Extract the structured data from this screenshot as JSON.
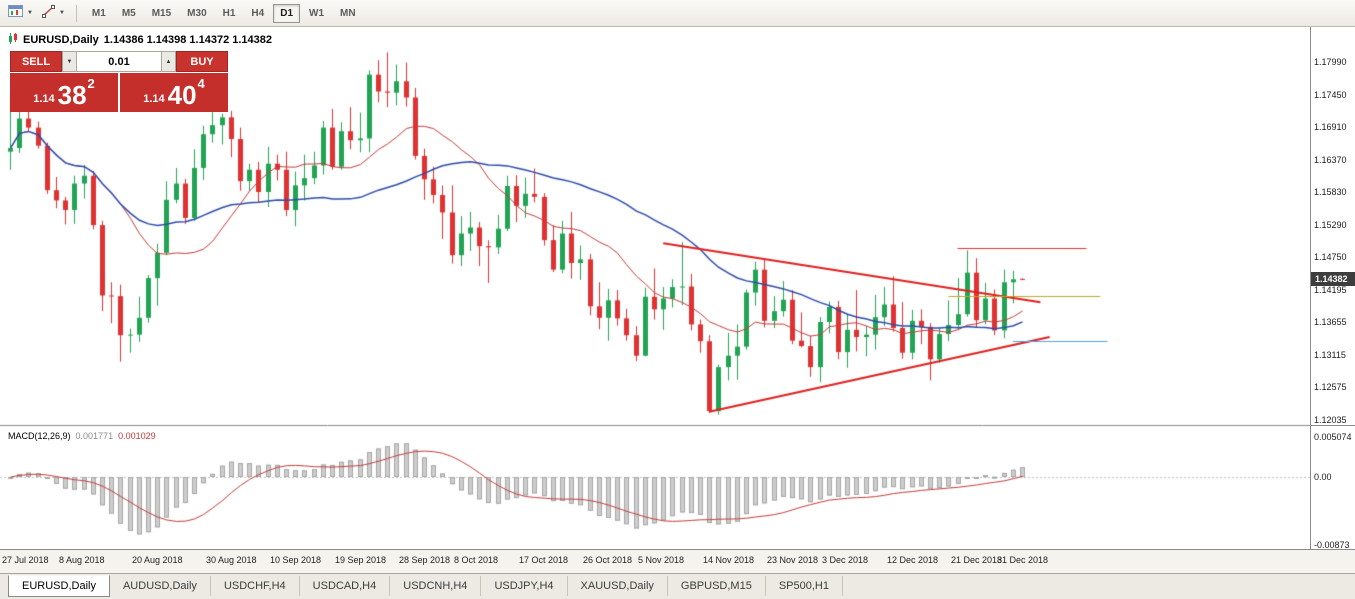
{
  "toolbar": {
    "timeframes": [
      {
        "label": "M1",
        "active": false
      },
      {
        "label": "M5",
        "active": false
      },
      {
        "label": "M15",
        "active": false
      },
      {
        "label": "M30",
        "active": false
      },
      {
        "label": "H1",
        "active": false
      },
      {
        "label": "H4",
        "active": false
      },
      {
        "label": "D1",
        "active": true
      },
      {
        "label": "W1",
        "active": false
      },
      {
        "label": "MN",
        "active": false
      }
    ]
  },
  "header": {
    "symbol": "EURUSD,Daily",
    "ohlc": "1.14386 1.14398 1.14372 1.14382"
  },
  "trade_panel": {
    "sell_label": "SELL",
    "buy_label": "BUY",
    "lot": "0.01",
    "sell_price": {
      "prefix": "1.14",
      "big": "38",
      "sup": "2"
    },
    "buy_price": {
      "prefix": "1.14",
      "big": "40",
      "sup": "4"
    }
  },
  "chart": {
    "current_price": "1.14382",
    "price_ticks": [
      "1.17990",
      "1.17450",
      "1.16910",
      "1.16370",
      "1.15830",
      "1.15290",
      "1.14750",
      "1.14195",
      "1.13655",
      "1.13115",
      "1.12575",
      "1.12035"
    ],
    "date_ticks": [
      {
        "label": "27 Jul 2018",
        "i": 0
      },
      {
        "label": "8 Aug 2018",
        "i": 8
      },
      {
        "label": "20 Aug 2018",
        "i": 16
      },
      {
        "label": "30 Aug 2018",
        "i": 24
      },
      {
        "label": "10 Sep 2018",
        "i": 31
      },
      {
        "label": "19 Sep 2018",
        "i": 38
      },
      {
        "label": "28 Sep 2018",
        "i": 45
      },
      {
        "label": "8 Oct 2018",
        "i": 51
      },
      {
        "label": "17 Oct 2018",
        "i": 58
      },
      {
        "label": "26 Oct 2018",
        "i": 65
      },
      {
        "label": "5 Nov 2018",
        "i": 71
      },
      {
        "label": "14 Nov 2018",
        "i": 78
      },
      {
        "label": "23 Nov 2018",
        "i": 85
      },
      {
        "label": "3 Dec 2018",
        "i": 91
      },
      {
        "label": "12 Dec 2018",
        "i": 98
      },
      {
        "label": "21 Dec 2018",
        "i": 105
      },
      {
        "label": "31 Dec 2018",
        "i": 110
      }
    ]
  },
  "macd_panel": {
    "name": "MACD(12,26,9)",
    "main_value": "0.001771",
    "signal_value": "0.001029",
    "scale_ticks": [
      {
        "label": "0.005074",
        "value": 0.005074
      },
      {
        "label": "0.00",
        "value": 0
      },
      {
        "label": "-0.00873",
        "value": -0.00873
      }
    ]
  },
  "tabs": [
    {
      "label": "EURUSD,Daily",
      "active": true
    },
    {
      "label": "AUDUSD,Daily",
      "active": false
    },
    {
      "label": "USDCHF,H4",
      "active": false
    },
    {
      "label": "USDCAD,H4",
      "active": false
    },
    {
      "label": "USDCNH,H4",
      "active": false
    },
    {
      "label": "USDJPY,H4",
      "active": false
    },
    {
      "label": "XAUUSD,Daily",
      "active": false
    },
    {
      "label": "GBPUSD,M15",
      "active": false
    },
    {
      "label": "SP500,H1",
      "active": false
    }
  ],
  "chart_data": {
    "type": "candlestick",
    "symbol": "EURUSD",
    "timeframe": "D1",
    "y_axis": {
      "price_top": 1.1799,
      "price_step": 0.0054
    },
    "candle_colors": {
      "up": "#23A455",
      "down": "#E03232"
    },
    "ohlc_candles": [
      [
        1.165,
        1.1745,
        1.162,
        1.1656
      ],
      [
        1.1656,
        1.172,
        1.1648,
        1.1705
      ],
      [
        1.1705,
        1.1746,
        1.1684,
        1.169
      ],
      [
        1.169,
        1.17,
        1.1655,
        1.166
      ],
      [
        1.166,
        1.1665,
        1.158,
        1.1586
      ],
      [
        1.1586,
        1.1608,
        1.1556,
        1.1569
      ],
      [
        1.1569,
        1.1575,
        1.1529,
        1.1553
      ],
      [
        1.1553,
        1.161,
        1.153,
        1.1597
      ],
      [
        1.1597,
        1.1628,
        1.1572,
        1.161
      ],
      [
        1.161,
        1.1618,
        1.1521,
        1.1528
      ],
      [
        1.1528,
        1.1535,
        1.1385,
        1.1411
      ],
      [
        1.1411,
        1.1433,
        1.1365,
        1.141
      ],
      [
        1.141,
        1.1429,
        1.1301,
        1.1345
      ],
      [
        1.1345,
        1.1356,
        1.1316,
        1.1346
      ],
      [
        1.1346,
        1.1409,
        1.1334,
        1.1374
      ],
      [
        1.1374,
        1.1445,
        1.1366,
        1.144
      ],
      [
        1.144,
        1.1497,
        1.1394,
        1.1482
      ],
      [
        1.1482,
        1.1601,
        1.1478,
        1.157
      ],
      [
        1.157,
        1.1623,
        1.1564,
        1.1597
      ],
      [
        1.1597,
        1.1605,
        1.153,
        1.154
      ],
      [
        1.154,
        1.1654,
        1.1535,
        1.1623
      ],
      [
        1.1623,
        1.1693,
        1.1603,
        1.1679
      ],
      [
        1.1679,
        1.1735,
        1.1665,
        1.1694
      ],
      [
        1.1694,
        1.1713,
        1.1662,
        1.1707
      ],
      [
        1.1707,
        1.1718,
        1.1641,
        1.1671
      ],
      [
        1.1671,
        1.169,
        1.1585,
        1.1601
      ],
      [
        1.1601,
        1.163,
        1.1585,
        1.162
      ],
      [
        1.162,
        1.1633,
        1.1565,
        1.1583
      ],
      [
        1.1583,
        1.1658,
        1.1558,
        1.163
      ],
      [
        1.163,
        1.1645,
        1.1602,
        1.162
      ],
      [
        1.162,
        1.165,
        1.1543,
        1.1553
      ],
      [
        1.1553,
        1.1617,
        1.1526,
        1.1594
      ],
      [
        1.1594,
        1.1645,
        1.1569,
        1.1606
      ],
      [
        1.1606,
        1.165,
        1.1596,
        1.1627
      ],
      [
        1.1627,
        1.1701,
        1.1612,
        1.169
      ],
      [
        1.169,
        1.1721,
        1.162,
        1.1625
      ],
      [
        1.1625,
        1.1699,
        1.162,
        1.1684
      ],
      [
        1.1684,
        1.1724,
        1.1654,
        1.1669
      ],
      [
        1.1669,
        1.1715,
        1.1649,
        1.1672
      ],
      [
        1.1672,
        1.1785,
        1.1649,
        1.1778
      ],
      [
        1.1778,
        1.1802,
        1.1732,
        1.175
      ],
      [
        1.175,
        1.1815,
        1.1724,
        1.1748
      ],
      [
        1.1748,
        1.1795,
        1.1727,
        1.1767
      ],
      [
        1.1767,
        1.1798,
        1.1725,
        1.174
      ],
      [
        1.174,
        1.1756,
        1.1637,
        1.1643
      ],
      [
        1.1643,
        1.1655,
        1.157,
        1.1604
      ],
      [
        1.1604,
        1.1625,
        1.1564,
        1.1578
      ],
      [
        1.1578,
        1.1594,
        1.1505,
        1.1549
      ],
      [
        1.1549,
        1.1594,
        1.1464,
        1.1478
      ],
      [
        1.1478,
        1.1543,
        1.146,
        1.1514
      ],
      [
        1.1514,
        1.155,
        1.1485,
        1.1524
      ],
      [
        1.1524,
        1.1533,
        1.146,
        1.1493
      ],
      [
        1.1493,
        1.1503,
        1.1432,
        1.1491
      ],
      [
        1.1491,
        1.1545,
        1.148,
        1.1522
      ],
      [
        1.1522,
        1.161,
        1.1518,
        1.1593
      ],
      [
        1.1593,
        1.1611,
        1.1533,
        1.156
      ],
      [
        1.156,
        1.1607,
        1.154,
        1.158
      ],
      [
        1.158,
        1.1622,
        1.1566,
        1.1575
      ],
      [
        1.1575,
        1.1581,
        1.1494,
        1.1503
      ],
      [
        1.1503,
        1.1528,
        1.145,
        1.1454
      ],
      [
        1.1454,
        1.1535,
        1.1448,
        1.1514
      ],
      [
        1.1514,
        1.155,
        1.1439,
        1.1465
      ],
      [
        1.1465,
        1.1494,
        1.1437,
        1.1471
      ],
      [
        1.1471,
        1.148,
        1.1378,
        1.1393
      ],
      [
        1.1393,
        1.1433,
        1.1355,
        1.1374
      ],
      [
        1.1374,
        1.1422,
        1.1336,
        1.1403
      ],
      [
        1.1403,
        1.142,
        1.1361,
        1.1373
      ],
      [
        1.1373,
        1.1389,
        1.1336,
        1.1345
      ],
      [
        1.1345,
        1.136,
        1.1302,
        1.1311
      ],
      [
        1.1311,
        1.1424,
        1.131,
        1.1409
      ],
      [
        1.1409,
        1.1456,
        1.1371,
        1.1388
      ],
      [
        1.1388,
        1.1425,
        1.1354,
        1.1406
      ],
      [
        1.1406,
        1.1438,
        1.1391,
        1.1425
      ],
      [
        1.1425,
        1.15,
        1.1395,
        1.1426
      ],
      [
        1.1426,
        1.1447,
        1.1353,
        1.1363
      ],
      [
        1.1363,
        1.1371,
        1.1316,
        1.1335
      ],
      [
        1.1335,
        1.1345,
        1.1216,
        1.1219
      ],
      [
        1.1219,
        1.1296,
        1.1213,
        1.1292
      ],
      [
        1.1292,
        1.1349,
        1.127,
        1.1311
      ],
      [
        1.1311,
        1.1363,
        1.1271,
        1.1326
      ],
      [
        1.1326,
        1.1421,
        1.1321,
        1.1416
      ],
      [
        1.1416,
        1.1467,
        1.1394,
        1.1454
      ],
      [
        1.1454,
        1.1473,
        1.1358,
        1.1369
      ],
      [
        1.1369,
        1.141,
        1.1357,
        1.1385
      ],
      [
        1.1385,
        1.1435,
        1.1376,
        1.1404
      ],
      [
        1.1404,
        1.142,
        1.133,
        1.1336
      ],
      [
        1.1336,
        1.1383,
        1.1325,
        1.1327
      ],
      [
        1.1327,
        1.1344,
        1.1276,
        1.1292
      ],
      [
        1.1292,
        1.1375,
        1.1267,
        1.1367
      ],
      [
        1.1367,
        1.1401,
        1.1348,
        1.1392
      ],
      [
        1.1392,
        1.1402,
        1.1305,
        1.1317
      ],
      [
        1.1317,
        1.138,
        1.1291,
        1.1354
      ],
      [
        1.1354,
        1.142,
        1.1318,
        1.1342
      ],
      [
        1.1342,
        1.136,
        1.131,
        1.1346
      ],
      [
        1.1346,
        1.1412,
        1.1321,
        1.1375
      ],
      [
        1.1375,
        1.1425,
        1.136,
        1.1396
      ],
      [
        1.1396,
        1.1443,
        1.1351,
        1.1357
      ],
      [
        1.1357,
        1.14,
        1.1306,
        1.1316
      ],
      [
        1.1316,
        1.1387,
        1.1305,
        1.1369
      ],
      [
        1.1369,
        1.1388,
        1.133,
        1.1359
      ],
      [
        1.1359,
        1.1365,
        1.127,
        1.1305
      ],
      [
        1.1305,
        1.1358,
        1.1299,
        1.1347
      ],
      [
        1.1347,
        1.1403,
        1.1335,
        1.1362
      ],
      [
        1.1362,
        1.144,
        1.1355,
        1.138
      ],
      [
        1.138,
        1.1486,
        1.1376,
        1.1449
      ],
      [
        1.1449,
        1.1473,
        1.1357,
        1.137
      ],
      [
        1.137,
        1.1432,
        1.1363,
        1.1406
      ],
      [
        1.1406,
        1.1421,
        1.1345,
        1.1353
      ],
      [
        1.1353,
        1.1454,
        1.134,
        1.1433
      ],
      [
        1.1433,
        1.1452,
        1.1398,
        1.1438
      ],
      [
        1.14386,
        1.14398,
        1.14372,
        1.14382
      ]
    ],
    "moving_averages": [
      {
        "period": 13,
        "method": "sma",
        "color": "#C43C3C",
        "width": 1
      },
      {
        "period": 34,
        "method": "sma",
        "color": "#2E4CA8",
        "width": 1.5
      }
    ],
    "objects": {
      "trendlines": [
        {
          "i1": 71,
          "p1": 1.1498,
          "i2": 112,
          "p2": 1.14,
          "color": "#E02020",
          "width": 2
        },
        {
          "i1": 76,
          "p1": 1.1218,
          "i2": 113,
          "p2": 1.1342,
          "color": "#E02020",
          "width": 2
        }
      ],
      "hlines": [
        {
          "price": 1.149,
          "i1": 103,
          "i2": 117,
          "color": "#E03030",
          "width": 1
        },
        {
          "price": 1.141,
          "i1": 102,
          "i2": 118.5,
          "color": "#BDA727",
          "width": 1
        },
        {
          "price": 1.1335,
          "i1": 109,
          "i2": 119.3,
          "color": "#4FA3E3",
          "width": 1
        }
      ]
    },
    "macd": {
      "fast": 12,
      "slow": 26,
      "signal": 9,
      "histogram_fill": "#CDCDCD",
      "histogram_stroke": "#A8A8A8",
      "signal_color": "#C43C3C",
      "scale_max": 0.005074,
      "scale_min": -0.00873
    }
  }
}
